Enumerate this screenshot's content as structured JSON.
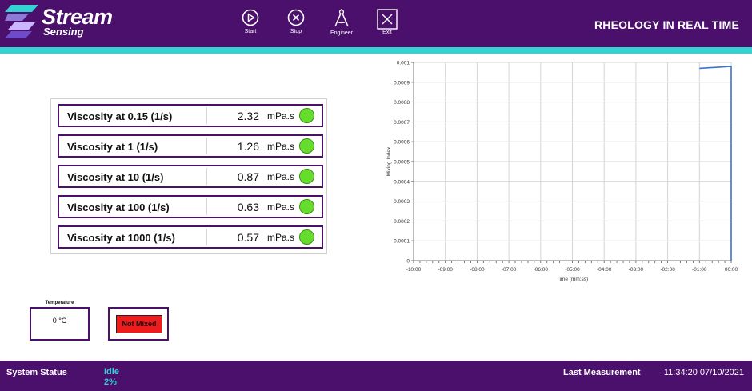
{
  "header": {
    "logo_title": "Stream",
    "logo_subtitle": "Sensing",
    "app_title": "RHEOLOGY IN REAL TIME",
    "colors": {
      "header_bg": "#4b0f6c",
      "accent": "#34d3d3"
    }
  },
  "toolbar": {
    "start_label": "Start",
    "stop_label": "Stop",
    "engineer_label": "Engineer",
    "exit_label": "Exit"
  },
  "viscosity": [
    {
      "label": "Viscosity at 0.15 (1/s)",
      "value": "2.32",
      "unit": "mPa.s",
      "status": "ok"
    },
    {
      "label": "Viscosity at 1 (1/s)",
      "value": "1.26",
      "unit": "mPa.s",
      "status": "ok"
    },
    {
      "label": "Viscosity at 10 (1/s)",
      "value": "0.87",
      "unit": "mPa.s",
      "status": "ok"
    },
    {
      "label": "Viscosity at 100 (1/s)",
      "value": "0.63",
      "unit": "mPa.s",
      "status": "ok"
    },
    {
      "label": "Viscosity at 1000 (1/s)",
      "value": "0.57",
      "unit": "mPa.s",
      "status": "ok"
    }
  ],
  "temperature": {
    "title": "Temperature",
    "value": "0 °C"
  },
  "mixing": {
    "status": "Not Mixed",
    "color": "#ee1c1c"
  },
  "chart_data": {
    "type": "line",
    "xlabel": "Time (mm:ss)",
    "ylabel": "Mixing Index",
    "x_ticks": [
      "-10:00",
      "-09:00",
      "-08:00",
      "-07:00",
      "-06:00",
      "-05:00",
      "-04:00",
      "-03:00",
      "-02:00",
      "-01:00",
      "00:00"
    ],
    "y_ticks": [
      "0",
      "0.0001",
      "0.0002",
      "0.0003",
      "0.0004",
      "0.0005",
      "0.0006",
      "0.0007",
      "0.0008",
      "0.0009",
      "0.001"
    ],
    "xlim": [
      -600,
      0
    ],
    "ylim": [
      0,
      0.001
    ],
    "grid": true,
    "series": [
      {
        "x": [
          -60,
          0,
          0
        ],
        "y": [
          0.00097,
          0.00098,
          0
        ],
        "color": "#3d6fd6"
      }
    ]
  },
  "footer": {
    "status_label": "System Status",
    "status_value": "Idle",
    "status_percent": "2%",
    "last_label": "Last Measurement",
    "last_value": "11:34:20 07/10/2021"
  }
}
